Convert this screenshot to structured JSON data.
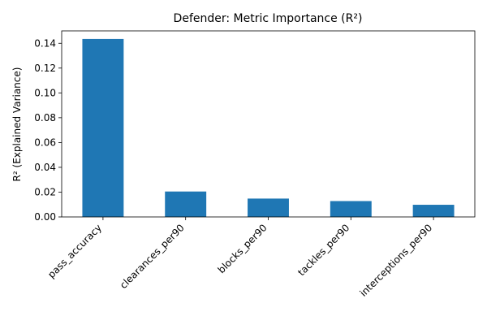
{
  "chart_data": {
    "type": "bar",
    "title": "Defender: Metric Importance (R²)",
    "xlabel": "",
    "ylabel": "R² (Explained Variance)",
    "categories": [
      "pass_accuracy",
      "clearances_per90",
      "blocks_per90",
      "tackles_per90",
      "interceptions_per90"
    ],
    "values": [
      0.1435,
      0.0205,
      0.0148,
      0.0128,
      0.0098
    ],
    "ylim": [
      0,
      0.15
    ],
    "yticks": [
      0.0,
      0.02,
      0.04,
      0.06,
      0.08,
      0.1,
      0.12,
      0.14
    ],
    "ytick_labels": [
      "0.00",
      "0.02",
      "0.04",
      "0.06",
      "0.08",
      "0.10",
      "0.12",
      "0.14"
    ],
    "bar_color": "#1f77b4",
    "grid": false,
    "legend": "none"
  }
}
